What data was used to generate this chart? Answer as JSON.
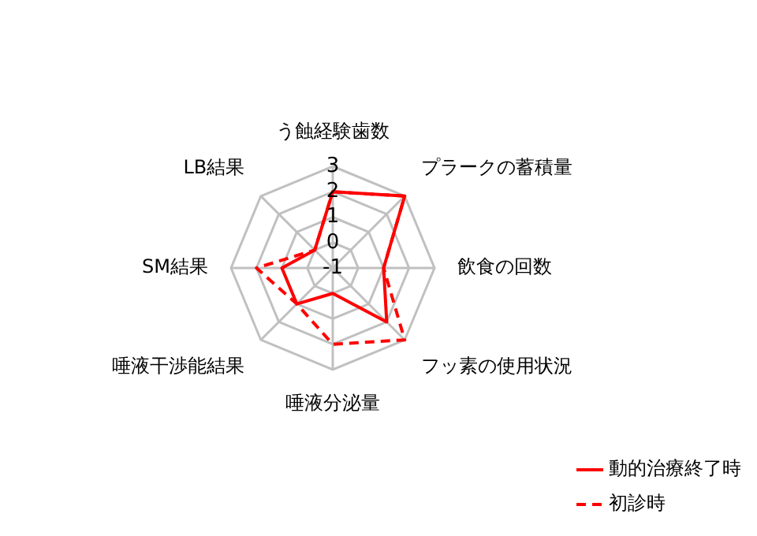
{
  "chart_data": {
    "type": "radar",
    "categories": [
      "う蝕経験歯数",
      "プラークの蓄積量",
      "飲食の回数",
      "フッ素の使用状況",
      "唾液分泌量",
      "唾液干渉能結果",
      "SM結果",
      "LB結果"
    ],
    "series": [
      {
        "name": "動的治療終了時",
        "color": "#ff0000",
        "line_style": "solid",
        "values": [
          2,
          3,
          1,
          2,
          0,
          1,
          1,
          0
        ]
      },
      {
        "name": "初診時",
        "color": "#ff0000",
        "line_style": "dashed",
        "values": [
          2,
          3,
          1,
          3,
          2,
          1,
          2,
          0
        ]
      }
    ],
    "ylim": [
      -1,
      3
    ],
    "yticks": [
      -1,
      0,
      1,
      2,
      3
    ],
    "grid": true,
    "legend": "bottom right",
    "marker": "none"
  }
}
